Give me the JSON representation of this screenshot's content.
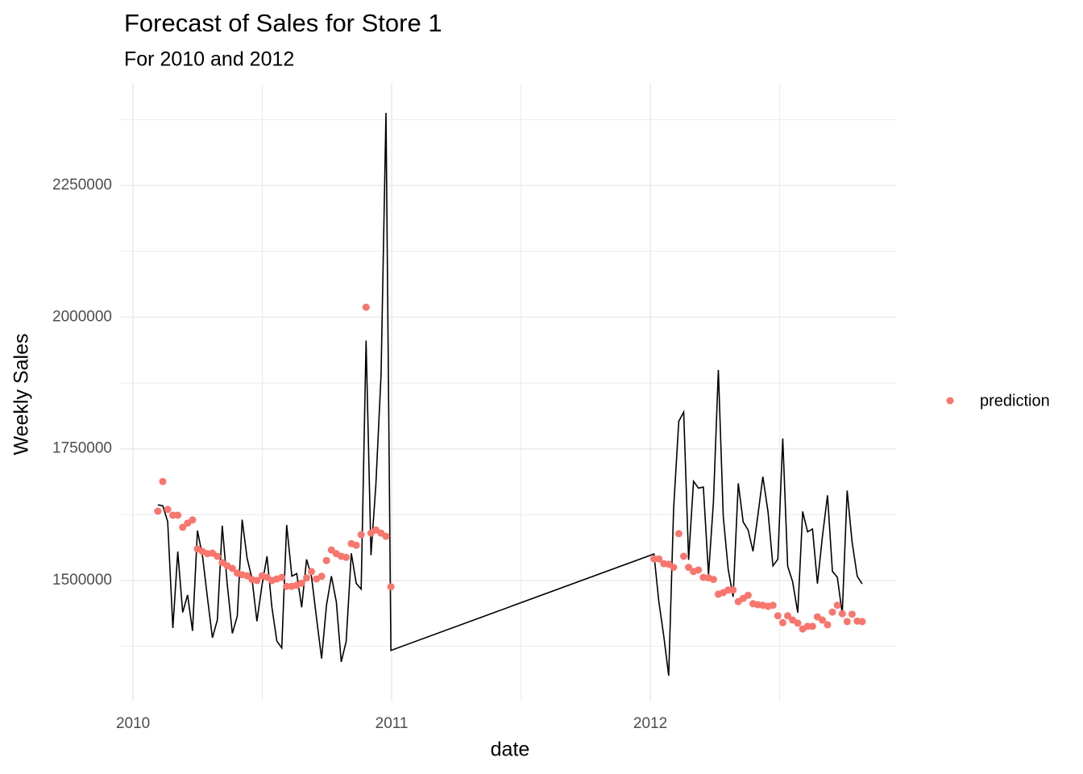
{
  "chart_data": {
    "type": "line_points",
    "title": "Forecast of Sales for Store 1",
    "subtitle": "For 2010 and 2012",
    "x_label": "date",
    "y_label": "Weekly Sales",
    "x": [
      2010.096,
      2010.115,
      2010.134,
      2010.154,
      2010.173,
      2010.192,
      2010.211,
      2010.23,
      2010.249,
      2010.269,
      2010.288,
      2010.307,
      2010.326,
      2010.345,
      2010.364,
      2010.384,
      2010.403,
      2010.422,
      2010.441,
      2010.46,
      2010.479,
      2010.499,
      2010.518,
      2010.537,
      2010.556,
      2010.575,
      2010.594,
      2010.614,
      2010.633,
      2010.652,
      2010.671,
      2010.69,
      2010.709,
      2010.729,
      2010.748,
      2010.767,
      2010.786,
      2010.805,
      2010.824,
      2010.844,
      2010.863,
      2010.882,
      2010.901,
      2010.92,
      2010.939,
      2010.959,
      2010.978,
      2010.997,
      2012.014,
      2012.033,
      2012.052,
      2012.071,
      2012.09,
      2012.11,
      2012.129,
      2012.148,
      2012.167,
      2012.186,
      2012.205,
      2012.225,
      2012.244,
      2012.263,
      2012.282,
      2012.301,
      2012.32,
      2012.34,
      2012.359,
      2012.378,
      2012.397,
      2012.416,
      2012.435,
      2012.455,
      2012.474,
      2012.493,
      2012.512,
      2012.531,
      2012.55,
      2012.57,
      2012.589,
      2012.608,
      2012.627,
      2012.646,
      2012.665,
      2012.685,
      2012.704,
      2012.723,
      2012.742,
      2012.761,
      2012.78,
      2012.8,
      2012.819
    ],
    "series": [
      {
        "style": "line",
        "color": "#000000",
        "values": [
          1643690,
          1641957,
          1611968,
          1409728,
          1554807,
          1439542,
          1472515,
          1404430,
          1594968,
          1545419,
          1466058,
          1391256,
          1425101,
          1603955,
          1494251,
          1399662,
          1432070,
          1615525,
          1542561,
          1503284,
          1422712,
          1492418,
          1546074,
          1448938,
          1385065,
          1371987,
          1605492,
          1508238,
          1513080,
          1449143,
          1540163,
          1507461,
          1430379,
          1351791,
          1453330,
          1508239,
          1459410,
          1345454,
          1384210,
          1551659,
          1494479,
          1483784,
          1955624,
          1548034,
          1682614,
          1891034,
          2387950,
          1367320,
          1550369,
          1459601,
          1394394,
          1319325,
          1636340,
          1802478,
          1819870,
          1539388,
          1688420,
          1675432,
          1677472,
          1511069,
          1649605,
          1899677,
          1621032,
          1521578,
          1468928,
          1684519,
          1611097,
          1595901,
          1555445,
          1624478,
          1697231,
          1630608,
          1527846,
          1540421,
          1769855,
          1527014,
          1497954,
          1439124,
          1631136,
          1592409,
          1597868,
          1494122,
          1582083,
          1661767,
          1517429,
          1506126,
          1437059,
          1670786,
          1573072,
          1508068,
          1493660
        ]
      },
      {
        "style": "points",
        "name": "prediction",
        "color": "#F8766D",
        "values": [
          1631700,
          1688000,
          1635000,
          1624000,
          1624000,
          1601000,
          1609000,
          1615000,
          1560000,
          1555000,
          1551000,
          1552000,
          1546000,
          1534000,
          1528000,
          1523000,
          1514000,
          1511000,
          1509000,
          1502000,
          1500000,
          1509000,
          1506000,
          1500000,
          1503000,
          1506000,
          1489000,
          1489000,
          1491000,
          1495000,
          1505000,
          1517000,
          1503000,
          1508000,
          1538000,
          1558000,
          1551000,
          1546000,
          1544000,
          1570000,
          1567000,
          1587000,
          2019000,
          1590000,
          1596000,
          1590000,
          1584000,
          1488000,
          1541000,
          1541000,
          1532000,
          1531000,
          1525000,
          1589000,
          1546000,
          1525000,
          1517000,
          1520000,
          1506000,
          1505000,
          1502000,
          1474000,
          1477000,
          1482000,
          1482000,
          1460000,
          1466000,
          1472000,
          1456000,
          1454000,
          1453000,
          1451000,
          1453000,
          1433000,
          1420000,
          1433000,
          1425000,
          1419000,
          1408000,
          1413000,
          1413000,
          1431000,
          1425000,
          1416000,
          1440000,
          1453000,
          1437000,
          1422000,
          1436000,
          1423000,
          1422000
        ]
      }
    ],
    "xlim": [
      2009.953,
      2012.95
    ],
    "ylim": [
      1270400,
      2444600
    ],
    "xticks": [
      2010,
      2011,
      2012
    ],
    "yticks": [
      1500000,
      1750000,
      2000000,
      2250000
    ],
    "grid": true,
    "minor_grid": true,
    "legend_position": "right"
  }
}
